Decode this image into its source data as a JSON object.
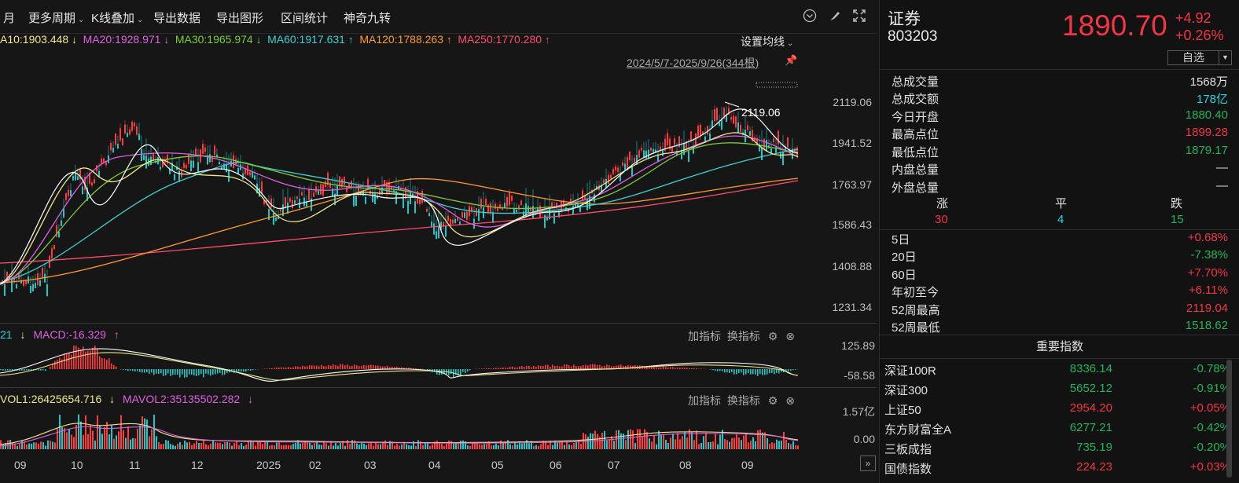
{
  "toolbar": {
    "period_partial": "月",
    "more_periods": "更多周期",
    "kline_overlay": "K线叠加",
    "export_data": "导出数据",
    "export_chart": "导出图形",
    "range_stats": "区间统计",
    "magic_nine": "神奇九转"
  },
  "ma": {
    "ma10": "A10:1903.448",
    "ma20": "MA20:1928.971",
    "ma30": "MA30:1965.974",
    "ma60": "MA60:1917.631",
    "ma120": "MA120:1788.263",
    "ma250": "MA250:1770.280",
    "arrow_down": "↓",
    "arrow_up": "↑",
    "settings": "设置均线",
    "colors": {
      "ma10": "#f0e68c",
      "ma20": "#e060e0",
      "ma30": "#7ccd3c",
      "ma60": "#40d0d0",
      "ma120": "#ff9a2e",
      "ma250": "#ff4d6a"
    }
  },
  "range_label": "2024/5/7-2025/9/26(344根)",
  "high_marker": "2119.06",
  "price_axis": [
    "2119.06",
    "1941.52",
    "1763.97",
    "1586.43",
    "1408.88",
    "1231.34"
  ],
  "macd": {
    "partial": "21",
    "label": "MACD:-16.329",
    "axis_top": "125.89",
    "axis_bottom": "-58.58"
  },
  "vol": {
    "vol1": "VOL1:26425654.716",
    "mavol2": "MAVOL2:35135502.282",
    "axis_top": "1.57亿",
    "axis_bottom": "0.00"
  },
  "panel_buttons": {
    "add": "加指标",
    "switch": "换指标"
  },
  "x_axis": [
    "09",
    "10",
    "11",
    "12",
    "2025",
    "02",
    "03",
    "04",
    "05",
    "06",
    "07",
    "08",
    "09"
  ],
  "stock": {
    "name": "证券",
    "code": "803203",
    "price": "1890.70",
    "change": "+4.92",
    "change_pct": "+0.26%",
    "watch": "自选"
  },
  "stats": [
    {
      "k": "总成交量",
      "v": "1568万",
      "c": "white"
    },
    {
      "k": "总成交额",
      "v": "178亿",
      "c": "cyan"
    },
    {
      "k": "今日开盘",
      "v": "1880.40",
      "c": "green"
    },
    {
      "k": "最高点位",
      "v": "1899.28",
      "c": "red"
    },
    {
      "k": "最低点位",
      "v": "1879.17",
      "c": "green"
    },
    {
      "k": "内盘总量",
      "v": "—",
      "c": "white"
    },
    {
      "k": "外盘总量",
      "v": "—",
      "c": "white"
    }
  ],
  "updown": {
    "up_label": "涨",
    "flat_label": "平",
    "down_label": "跌",
    "up": "30",
    "flat": "4",
    "down": "15"
  },
  "perf": [
    {
      "k": "5日",
      "v": "+0.68%",
      "c": "red"
    },
    {
      "k": "20日",
      "v": "-7.38%",
      "c": "green"
    },
    {
      "k": "60日",
      "v": "+7.70%",
      "c": "red"
    },
    {
      "k": "年初至今",
      "v": "+6.11%",
      "c": "red"
    },
    {
      "k": "52周最高",
      "v": "2119.04",
      "c": "red"
    },
    {
      "k": "52周最低",
      "v": "1518.62",
      "c": "green"
    }
  ],
  "indices_title": "重要指数",
  "indices": [
    {
      "n": "深证100R",
      "p": "8336.14",
      "c": "-0.78%",
      "col": "green"
    },
    {
      "n": "深证300",
      "p": "5652.12",
      "c": "-0.91%",
      "col": "green"
    },
    {
      "n": "上证50",
      "p": "2954.20",
      "c": "+0.05%",
      "col": "red"
    },
    {
      "n": "东方财富全A",
      "p": "6277.21",
      "c": "-0.42%",
      "col": "green"
    },
    {
      "n": "三板成指",
      "p": "735.19",
      "c": "-0.20%",
      "col": "green"
    },
    {
      "n": "国债指数",
      "p": "224.23",
      "c": "+0.03%",
      "col": "red"
    }
  ]
}
